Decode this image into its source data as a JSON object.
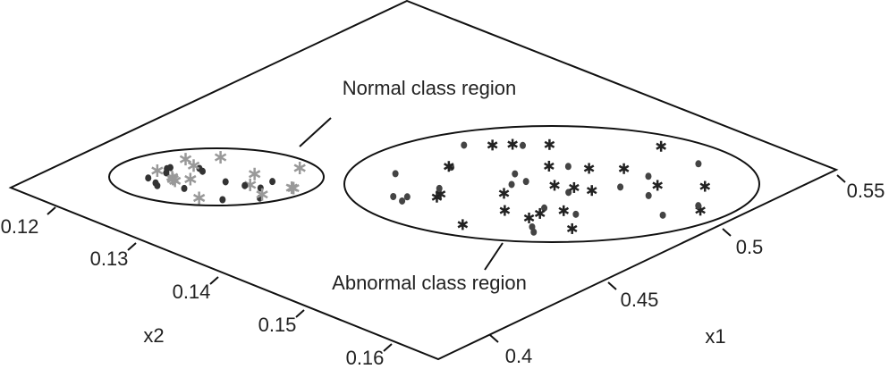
{
  "axes": {
    "x1": {
      "label": "x1",
      "ticks": [
        "0.4",
        "0.45",
        "0.5",
        "0.55"
      ]
    },
    "x2": {
      "label": "x2",
      "ticks": [
        "0.12",
        "0.13",
        "0.14",
        "0.15",
        "0.16"
      ]
    }
  },
  "annotations": {
    "normal": "Normal class region",
    "abnormal": "Abnormal class region"
  }
}
